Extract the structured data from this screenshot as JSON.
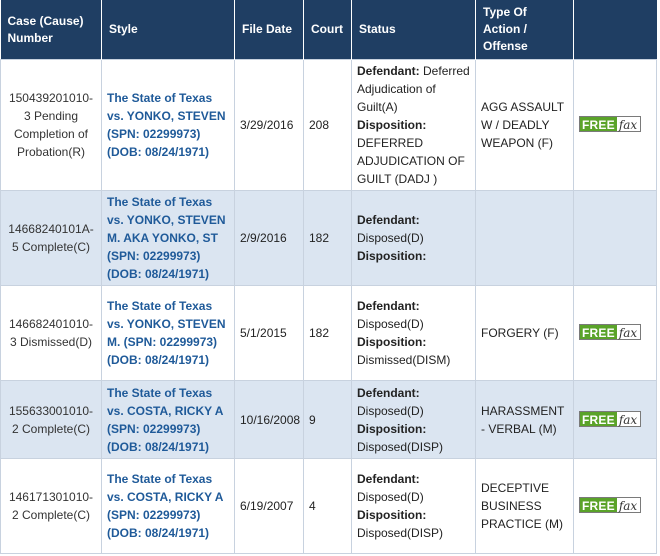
{
  "headers": {
    "case": "Case (Cause) Number",
    "style": "Style",
    "file_date": "File Date",
    "court": "Court",
    "status": "Status",
    "type": "Type Of Action / Offense"
  },
  "labels": {
    "defendant": "Defendant:",
    "disposition": "Disposition:",
    "free": "FREE",
    "fax": "fax"
  },
  "rows": [
    {
      "case": "150439201010-3 Pending Completion of Probation(R)",
      "style": "The State of Texas vs. YONKO, STEVEN (SPN: 02299973) (DOB: 08/24/1971)",
      "file_date": "3/29/2016",
      "court": "208",
      "defendant": "Deferred Adjudication of Guilt(A)",
      "disposition": "DEFERRED ADJUDICATION OF GUILT (DADJ )",
      "offense": "AGG ASSAULT W / DEADLY WEAPON (F)",
      "has_fax": true
    },
    {
      "case": "14668240101A-5 Complete(C)",
      "style": "The State of Texas vs. YONKO, STEVEN M. AKA YONKO, ST (SPN: 02299973) (DOB: 08/24/1971)",
      "file_date": "2/9/2016",
      "court": "182",
      "defendant": "Disposed(D)",
      "disposition": "",
      "offense": "",
      "has_fax": false
    },
    {
      "case": "146682401010-3 Dismissed(D)",
      "style": "The State of Texas vs. YONKO, STEVEN M. (SPN: 02299973) (DOB: 08/24/1971)",
      "file_date": "5/1/2015",
      "court": "182",
      "defendant": "Disposed(D)",
      "disposition": "Dismissed(DISM)",
      "offense": "FORGERY (F)",
      "has_fax": true
    },
    {
      "case": "155633001010-2 Complete(C)",
      "style": "The State of Texas vs. COSTA, RICKY A (SPN: 02299973) (DOB: 08/24/1971)",
      "file_date": "10/16/2008",
      "court": "9",
      "defendant": "Disposed(D)",
      "disposition": "Disposed(DISP)",
      "offense": "HARASSMENT - VERBAL (M)",
      "has_fax": true
    },
    {
      "case": "146171301010-2 Complete(C)",
      "style": "The State of Texas vs. COSTA, RICKY A (SPN: 02299973) (DOB: 08/24/1971)",
      "file_date": "6/19/2007",
      "court": "4",
      "defendant": "Disposed(D)",
      "disposition": "Disposed(DISP)",
      "offense": "DECEPTIVE BUSINESS PRACTICE (M)",
      "has_fax": true
    }
  ]
}
